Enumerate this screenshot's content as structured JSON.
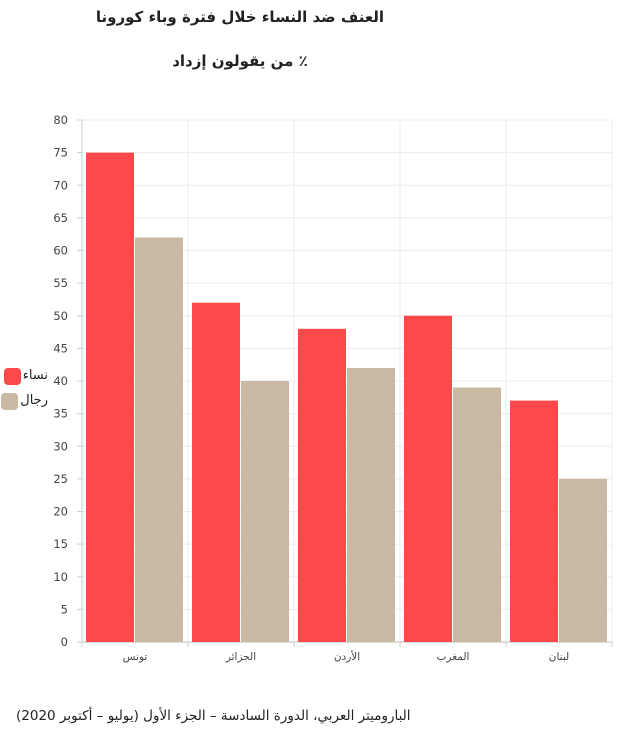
{
  "chart_data": {
    "type": "bar",
    "title": "العنف ضد النساء خلال فترة وباء كورونا",
    "subtitle": "٪ من يقولون إزداد",
    "xlabel": "",
    "ylabel": "",
    "categories": [
      "تونس",
      "الجزائر",
      "الأردن",
      "المغرب",
      "لبنان"
    ],
    "series": [
      {
        "name": "نساء",
        "values": [
          75,
          52,
          48,
          50,
          37
        ],
        "color": "#fc4a4a"
      },
      {
        "name": "رجال",
        "values": [
          62,
          40,
          42,
          39,
          25
        ],
        "color": "#c9b9a3"
      }
    ],
    "ylim": [
      0,
      80
    ],
    "yticks": [
      0,
      5,
      10,
      15,
      20,
      25,
      30,
      35,
      40,
      45,
      50,
      55,
      60,
      65,
      70,
      75,
      80
    ],
    "grid": true,
    "legend_position": "left"
  },
  "source": "البارومیتر العربي، الدورة السادسة – الجزء الأول (یولیو – أكتوبر 2020)"
}
